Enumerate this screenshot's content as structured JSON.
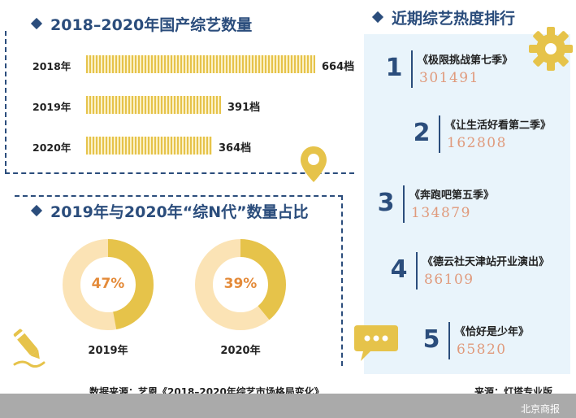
{
  "section1": {
    "title": "2018–2020年国产综艺数量"
  },
  "section2": {
    "title": "2019年与2020年“综N代”数量占比"
  },
  "section3": {
    "title": "近期综艺热度排行"
  },
  "chart_data": [
    {
      "type": "bar",
      "categories": [
        "2018年",
        "2019年",
        "2020年"
      ],
      "values": [
        664,
        391,
        364
      ],
      "value_labels": [
        "664档",
        "391档",
        "364档"
      ],
      "title": "2018–2020年国产综艺数量"
    },
    {
      "type": "pie",
      "title": "2019年与2020年“综N代”数量占比",
      "charts": [
        {
          "label": "2019年",
          "value": 47,
          "value_label": "47%"
        },
        {
          "label": "2020年",
          "value": 39,
          "value_label": "39%"
        }
      ]
    },
    {
      "type": "table",
      "title": "近期综艺热度排行",
      "rows": [
        {
          "rank": "1",
          "name": "《极限挑战第七季》",
          "value": "301491"
        },
        {
          "rank": "2",
          "name": "《让生活好看第二季》",
          "value": "162808"
        },
        {
          "rank": "3",
          "name": "《奔跑吧第五季》",
          "value": "134879"
        },
        {
          "rank": "4",
          "name": "《德云社天津站开业演出》",
          "value": "86109"
        },
        {
          "rank": "5",
          "name": "《恰好是少年》",
          "value": "65820"
        }
      ]
    }
  ],
  "footer": {
    "source_left": "数据来源：艺恩《2018–2020年综艺市场格局变化》",
    "source_right": "来源：灯塔专业版",
    "brand": "北京商报"
  },
  "colors": {
    "navy": "#2b4d7c",
    "gold": "#e6c34a",
    "donut_light": "#fbe3b5",
    "donut_dark": "#e6c34a",
    "accent_orange": "#e48b3a",
    "panel_bg": "#e9f4fb"
  },
  "icons": [
    "map-pin-icon",
    "pencil-icon",
    "gear-icon",
    "speech-bubble-icon"
  ]
}
